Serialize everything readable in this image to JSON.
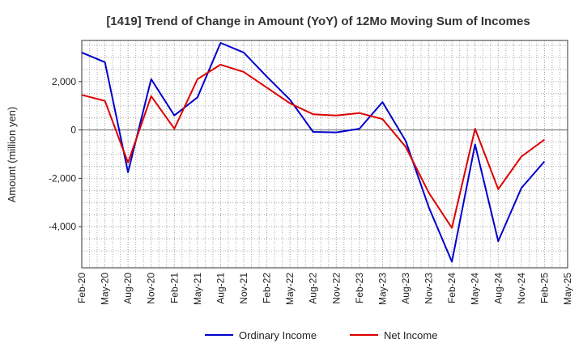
{
  "chart_data": {
    "type": "line",
    "title": "[1419]  Trend of Change in Amount (YoY) of 12Mo Moving Sum of Incomes",
    "xlabel": "",
    "ylabel": "Amount (million yen)",
    "x": [
      "Feb-20",
      "May-20",
      "Aug-20",
      "Nov-20",
      "Feb-21",
      "May-21",
      "Aug-21",
      "Nov-21",
      "Feb-22",
      "May-22",
      "Aug-22",
      "Nov-22",
      "Feb-23",
      "May-23",
      "Aug-23",
      "Nov-23",
      "Feb-24",
      "May-24",
      "Aug-24",
      "Nov-24",
      "Feb-25",
      "May-25"
    ],
    "ylim": [
      -5700,
      3700
    ],
    "yticks": [
      -4000,
      -2000,
      0,
      2000
    ],
    "ytick_labels": [
      "-4,000",
      "-2,000",
      "0",
      "2,000"
    ],
    "grid": true,
    "legend": "bottom-center",
    "series": [
      {
        "name": "Ordinary Income",
        "color": "#0000cc",
        "values": [
          3200,
          2800,
          -1750,
          2100,
          600,
          1350,
          3600,
          3200,
          2200,
          1250,
          -80,
          -100,
          50,
          1150,
          -450,
          -3200,
          -5450,
          -600,
          -4600,
          -2400,
          -1300,
          null
        ]
      },
      {
        "name": "Net Income",
        "color": "#dd0000",
        "values": [
          1450,
          1200,
          -1350,
          1400,
          50,
          2100,
          2700,
          2400,
          1750,
          1100,
          650,
          600,
          700,
          450,
          -700,
          -2600,
          -4050,
          50,
          -2450,
          -1100,
          -400,
          null
        ]
      }
    ]
  }
}
